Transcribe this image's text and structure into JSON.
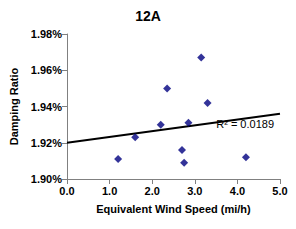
{
  "chart_data": {
    "type": "scatter",
    "title": "12A",
    "x_label": "Equivalent Wind Speed (mi/h)",
    "y_label": "Damping Ratio",
    "series": [
      {
        "type": "scatter",
        "color": "#000080",
        "marker": "diamond",
        "x": [
          1.2,
          1.6,
          2.2,
          2.35,
          2.7,
          2.75,
          2.85,
          3.15,
          3.3,
          4.2
        ],
        "values": [
          1.911,
          1.923,
          1.93,
          1.95,
          1.916,
          1.909,
          1.931,
          1.967,
          1.942,
          1.912
        ]
      },
      {
        "type": "line",
        "color": "#000000",
        "line_style": "solid",
        "x": [
          0,
          5
        ],
        "values": [
          1.92,
          1.936
        ]
      }
    ],
    "annotations": [
      "R² = 0.0189"
    ],
    "xlim": [
      0,
      5
    ],
    "xticks": [
      {
        "value": 0,
        "label": "0.0"
      },
      {
        "value": 1,
        "label": "1.0"
      },
      {
        "value": 2,
        "label": "2.0"
      },
      {
        "value": 3,
        "label": "3.0"
      },
      {
        "value": 4,
        "label": "4.0"
      },
      {
        "value": 5,
        "label": "5.0"
      }
    ],
    "ylim": [
      1.9,
      1.98
    ],
    "yticks": [
      {
        "value": 1.9,
        "label": "1.90%"
      },
      {
        "value": 1.92,
        "label": "1.92%"
      },
      {
        "value": 1.94,
        "label": "1.94%"
      },
      {
        "value": 1.96,
        "label": "1.96%"
      },
      {
        "value": 1.98,
        "label": "1.98%"
      }
    ],
    "grid": false
  }
}
